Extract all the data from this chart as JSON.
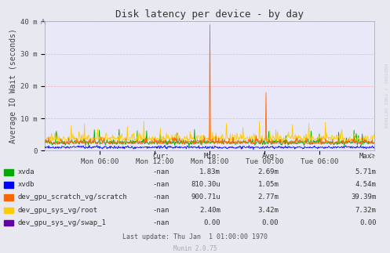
{
  "title": "Disk latency per device - by day",
  "ylabel": "Average IO Wait (seconds)",
  "bg_color": "#E8E8F0",
  "plot_bg_color": "#E8E8F8",
  "grid_color": "#FFAAAA",
  "grid_color_minor": "#DDDDEE",
  "ylim": [
    0,
    0.04
  ],
  "yticks": [
    0,
    0.01,
    0.02,
    0.03,
    0.04
  ],
  "ytick_labels": [
    "0",
    "10 m",
    "20 m",
    "30 m",
    "40 m"
  ],
  "xtick_labels": [
    "Mon 06:00",
    "Mon 12:00",
    "Mon 18:00",
    "Tue 00:00",
    "Tue 06:00"
  ],
  "series": [
    {
      "name": "xvda",
      "color": "#00AA00"
    },
    {
      "name": "xvdb",
      "color": "#0000FF"
    },
    {
      "name": "dev_gpu_scratch_vg/scratch",
      "color": "#FF6600"
    },
    {
      "name": "dev_gpu_sys_vg/root",
      "color": "#FFCC00"
    },
    {
      "name": "dev_gpu_sys_vg/swap_1",
      "color": "#6600AA"
    }
  ],
  "legend_data": [
    {
      "label": "xvda",
      "cur": "-nan",
      "min": "1.83m",
      "avg": "2.69m",
      "max": "5.71m"
    },
    {
      "label": "xvdb",
      "cur": "-nan",
      "min": "810.30u",
      "avg": "1.05m",
      "max": "4.54m"
    },
    {
      "label": "dev_gpu_scratch_vg/scratch",
      "cur": "-nan",
      "min": "900.71u",
      "avg": "2.77m",
      "max": "39.39m"
    },
    {
      "label": "dev_gpu_sys_vg/root",
      "cur": "-nan",
      "min": "2.40m",
      "avg": "3.42m",
      "max": "7.32m"
    },
    {
      "label": "dev_gpu_sys_vg/swap_1",
      "cur": "-nan",
      "min": "0.00",
      "avg": "0.00",
      "max": "0.00"
    }
  ],
  "last_update": "Last update: Thu Jan  1 01:00:00 1970",
  "munin_version": "Munin 2.0.75",
  "rrdtool_label": "RRDTOOL / TOBI OETIKER",
  "n_points": 600,
  "random_seed": 42
}
